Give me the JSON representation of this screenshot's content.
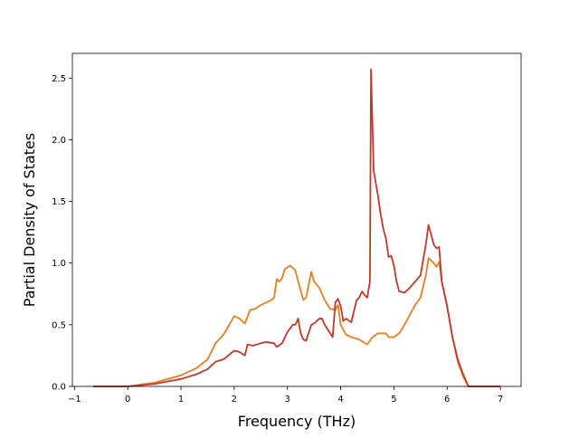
{
  "chart_data": {
    "type": "line",
    "x_label": "Frequency (THz)",
    "y_label": "Partial Density of States",
    "xlim": [
      -1.04,
      7.39
    ],
    "ylim": [
      0,
      2.7
    ],
    "xticks": [
      {
        "value": -1,
        "label": "−1"
      },
      0,
      1,
      2,
      3,
      4,
      5,
      6,
      7
    ],
    "yticks": [
      {
        "value": 0,
        "label": "0.0"
      },
      0.5,
      {
        "value": 1,
        "label": "1.0"
      },
      1.5,
      {
        "value": 2,
        "label": "2.0"
      },
      2.5
    ],
    "grid": false,
    "series": [
      {
        "color": "#e67e22",
        "x": [
          -0.65,
          0,
          0.5,
          1.0,
          1.3,
          1.5,
          1.65,
          1.8,
          2.0,
          2.1,
          2.2,
          2.3,
          2.4,
          2.5,
          2.6,
          2.7,
          2.75,
          2.8,
          2.85,
          2.9,
          2.95,
          3.05,
          3.15,
          3.2,
          3.3,
          3.35,
          3.45,
          3.5,
          3.6,
          3.7,
          3.8,
          3.9,
          3.95,
          4.0,
          4.1,
          4.2,
          4.35,
          4.5,
          4.6,
          4.7,
          4.85,
          4.9,
          5.0,
          5.1,
          5.2,
          5.3,
          5.4,
          5.5,
          5.6,
          5.65,
          5.75,
          5.8,
          5.85,
          5.9,
          6.0,
          6.1,
          6.2,
          6.3,
          6.4,
          7.0
        ],
        "values": [
          0,
          0,
          0.03,
          0.09,
          0.15,
          0.22,
          0.35,
          0.42,
          0.57,
          0.55,
          0.51,
          0.62,
          0.63,
          0.66,
          0.68,
          0.7,
          0.72,
          0.87,
          0.85,
          0.88,
          0.95,
          0.98,
          0.94,
          0.85,
          0.7,
          0.72,
          0.93,
          0.85,
          0.8,
          0.7,
          0.63,
          0.62,
          0.66,
          0.5,
          0.42,
          0.4,
          0.38,
          0.34,
          0.4,
          0.43,
          0.43,
          0.4,
          0.4,
          0.43,
          0.5,
          0.58,
          0.66,
          0.72,
          0.9,
          1.04,
          1.0,
          0.97,
          1.01,
          0.85,
          0.65,
          0.4,
          0.2,
          0.08,
          0,
          0
        ]
      },
      {
        "color": "#c0392b",
        "x": [
          -0.65,
          0,
          0.5,
          1.0,
          1.3,
          1.5,
          1.65,
          1.8,
          2.0,
          2.1,
          2.2,
          2.25,
          2.35,
          2.5,
          2.6,
          2.75,
          2.8,
          2.9,
          3.0,
          3.1,
          3.15,
          3.2,
          3.25,
          3.3,
          3.35,
          3.45,
          3.5,
          3.6,
          3.65,
          3.7,
          3.85,
          3.9,
          3.95,
          4.0,
          4.05,
          4.1,
          4.2,
          4.3,
          4.35,
          4.4,
          4.45,
          4.5,
          4.55,
          4.57,
          4.62,
          4.7,
          4.75,
          4.8,
          4.85,
          4.9,
          4.95,
          5.0,
          5.05,
          5.1,
          5.2,
          5.3,
          5.4,
          5.5,
          5.6,
          5.65,
          5.7,
          5.75,
          5.8,
          5.85,
          5.9,
          6.0,
          6.1,
          6.2,
          6.3,
          6.4,
          7.0
        ],
        "values": [
          0,
          0,
          0.02,
          0.06,
          0.1,
          0.14,
          0.2,
          0.22,
          0.29,
          0.28,
          0.25,
          0.34,
          0.33,
          0.35,
          0.36,
          0.35,
          0.32,
          0.35,
          0.44,
          0.5,
          0.5,
          0.55,
          0.43,
          0.38,
          0.37,
          0.5,
          0.51,
          0.55,
          0.55,
          0.5,
          0.4,
          0.68,
          0.71,
          0.65,
          0.53,
          0.55,
          0.52,
          0.7,
          0.72,
          0.77,
          0.74,
          0.72,
          0.85,
          2.57,
          1.75,
          1.55,
          1.4,
          1.28,
          1.2,
          1.05,
          1.06,
          0.98,
          0.85,
          0.77,
          0.76,
          0.8,
          0.85,
          0.9,
          1.15,
          1.31,
          1.23,
          1.15,
          1.12,
          1.13,
          0.85,
          0.65,
          0.4,
          0.22,
          0.1,
          0,
          0
        ]
      }
    ]
  }
}
